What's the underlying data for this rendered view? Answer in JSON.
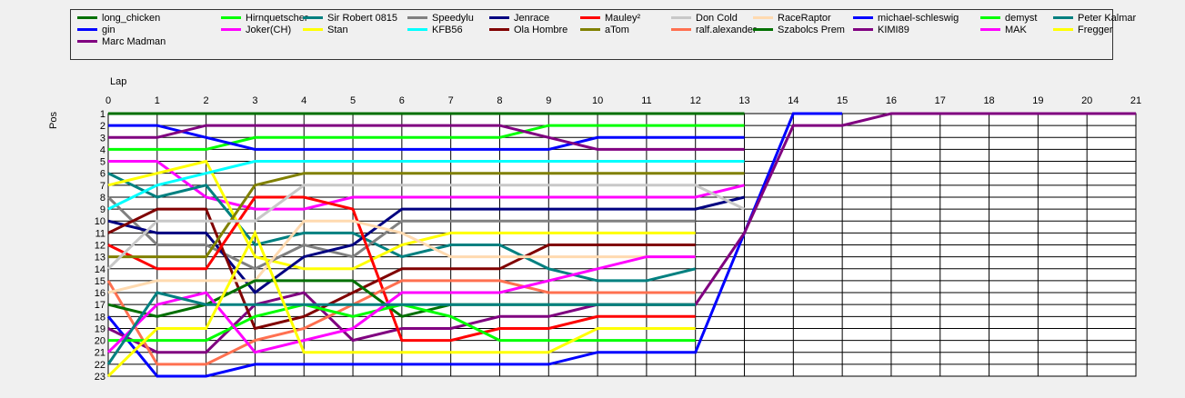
{
  "chart_data": {
    "type": "line",
    "xlabel": "Lap",
    "ylabel": "Pos",
    "xlim": [
      0,
      21
    ],
    "ylim": [
      1,
      23
    ],
    "y_inverted": true,
    "grid": true,
    "legend_placement": "top",
    "x_ticks": [
      0,
      1,
      2,
      3,
      4,
      5,
      6,
      7,
      8,
      9,
      10,
      11,
      12,
      13,
      14,
      15,
      16,
      17,
      18,
      19,
      20,
      21
    ],
    "y_ticks": [
      1,
      2,
      3,
      4,
      5,
      6,
      7,
      8,
      9,
      10,
      11,
      12,
      13,
      14,
      15,
      16,
      17,
      18,
      19,
      20,
      21,
      22,
      23
    ],
    "series": [
      {
        "name": "long_chicken",
        "color": "#007000",
        "values": [
          1,
          1,
          1,
          1,
          1,
          1,
          1,
          1,
          1,
          1,
          1,
          1,
          1,
          1
        ]
      },
      {
        "name": "gin",
        "color": "#0000ff",
        "values": [
          18,
          23,
          23,
          22,
          22,
          22,
          22,
          22,
          22,
          22,
          21,
          21,
          21,
          11,
          1,
          1
        ]
      },
      {
        "name": "Marc Madman",
        "color": "#800080",
        "values": [
          19,
          21,
          21,
          17,
          16,
          20,
          19,
          19,
          18,
          18,
          17,
          17,
          17,
          11,
          2,
          2,
          1,
          1,
          1,
          1,
          1,
          1
        ]
      },
      {
        "name": "Hirnquetscher",
        "color": "#00ff00",
        "values": [
          4,
          4,
          4,
          3,
          3,
          3,
          3,
          3,
          3,
          2,
          2,
          2,
          2,
          2
        ]
      },
      {
        "name": "Joker(CH)",
        "color": "#ff00ff",
        "values": [
          5,
          5,
          8,
          9,
          9,
          8,
          8,
          8,
          8,
          8,
          8,
          8,
          8,
          7
        ]
      },
      {
        "name": "Sir Robert 0815",
        "color": "#008080",
        "values": [
          6,
          8,
          7,
          12,
          11,
          11,
          13,
          12,
          12,
          14,
          15,
          15,
          14
        ]
      },
      {
        "name": "Stan",
        "color": "#ffff00",
        "values": [
          7,
          6,
          5,
          13,
          14,
          14,
          12,
          11,
          11,
          11,
          11,
          11,
          11
        ]
      },
      {
        "name": "Speedylu",
        "color": "#808080",
        "values": [
          8,
          12,
          12,
          14,
          12,
          13,
          10,
          10,
          10,
          10,
          10,
          10,
          10
        ]
      },
      {
        "name": "KFB56",
        "color": "#00ffff",
        "values": [
          9,
          7,
          6,
          5,
          5,
          5,
          5,
          5,
          5,
          5,
          5,
          5,
          5,
          5
        ]
      },
      {
        "name": "Jenrace",
        "color": "#000080",
        "values": [
          10,
          11,
          11,
          16,
          13,
          12,
          9,
          9,
          9,
          9,
          9,
          9,
          9,
          8
        ]
      },
      {
        "name": "Ola Hombre",
        "color": "#800000",
        "values": [
          11,
          9,
          9,
          19,
          18,
          16,
          14,
          14,
          14,
          12,
          12,
          12,
          12
        ]
      },
      {
        "name": "Mauley²",
        "color": "#ff0000",
        "values": [
          12,
          14,
          14,
          8,
          8,
          9,
          20,
          20,
          19,
          19,
          18,
          18,
          18
        ]
      },
      {
        "name": "aTom",
        "color": "#808000",
        "values": [
          13,
          13,
          13,
          7,
          6,
          6,
          6,
          6,
          6,
          6,
          6,
          6,
          6,
          6
        ]
      },
      {
        "name": "Don Cold",
        "color": "#c8c8c8",
        "values": [
          14,
          10,
          10,
          10,
          7,
          7,
          7,
          7,
          7,
          7,
          7,
          7,
          7,
          9
        ]
      },
      {
        "name": "ralf.alexander",
        "color": "#ff7050",
        "values": [
          15,
          22,
          22,
          20,
          19,
          17,
          15,
          15,
          15,
          16,
          16,
          16,
          16
        ]
      },
      {
        "name": "RaceRaptor",
        "color": "#ffdab0",
        "values": [
          16,
          15,
          15,
          15,
          10,
          10,
          11,
          13,
          13,
          13,
          13,
          13,
          13
        ]
      },
      {
        "name": "Szabolcs Prem",
        "color": "#007000",
        "values": [
          17,
          18,
          17,
          15,
          15,
          15,
          18,
          17,
          17,
          17,
          17,
          17,
          17
        ]
      },
      {
        "name": "michael-schleswig",
        "color": "#0000ff",
        "values": [
          2,
          2,
          3,
          4,
          4,
          4,
          4,
          4,
          4,
          4,
          3,
          3,
          3,
          3
        ]
      },
      {
        "name": "KIMI89",
        "color": "#800080",
        "values": [
          3,
          3,
          2,
          2,
          2,
          2,
          2,
          2,
          2,
          3,
          4,
          4,
          4,
          4
        ]
      },
      {
        "name": "demyst",
        "color": "#00ff00",
        "values": [
          20,
          20,
          20,
          18,
          17,
          18,
          17,
          18,
          20,
          20,
          20,
          20,
          20
        ]
      },
      {
        "name": "MAK",
        "color": "#ff00ff",
        "values": [
          21,
          17,
          16,
          21,
          20,
          19,
          16,
          16,
          16,
          15,
          14,
          13,
          13
        ]
      },
      {
        "name": "Peter Kalmar",
        "color": "#008080",
        "values": [
          22,
          16,
          17,
          17,
          17,
          17,
          17,
          17,
          17,
          17,
          17,
          17,
          17
        ]
      },
      {
        "name": "Fregger",
        "color": "#ffff00",
        "values": [
          23,
          19,
          19,
          11,
          21,
          21,
          21,
          21,
          21,
          21,
          19,
          19,
          19
        ]
      }
    ]
  }
}
